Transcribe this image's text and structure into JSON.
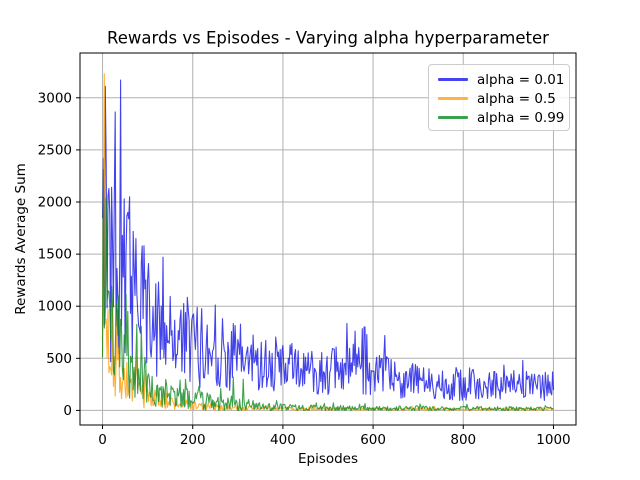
{
  "chart_data": {
    "type": "line",
    "title": "Rewards vs Episodes - Varying alpha hyperparameter",
    "xlabel": "Episodes",
    "ylabel": "Rewards Average Sum",
    "xlim": [
      -50,
      1050
    ],
    "ylim": [
      -140,
      3430
    ],
    "xticks": [
      0,
      200,
      400,
      600,
      800,
      1000
    ],
    "yticks": [
      0,
      500,
      1000,
      1500,
      2000,
      2500,
      3000
    ],
    "grid": true,
    "legend_position": "upper right",
    "x_range": {
      "start": 0,
      "end": 1000,
      "step": 2
    },
    "series": [
      {
        "name": "alpha = 0.01",
        "line_color": "#1414e6",
        "display_color": "#4545ef",
        "opacity": 0.8,
        "seed": 42,
        "spike_chance": 0.03,
        "envelope": [
          [
            0,
            1600,
            1200
          ],
          [
            30,
            1400,
            900
          ],
          [
            60,
            1150,
            750
          ],
          [
            100,
            900,
            550
          ],
          [
            150,
            730,
            460
          ],
          [
            200,
            640,
            430
          ],
          [
            250,
            560,
            370
          ],
          [
            300,
            510,
            340
          ],
          [
            350,
            460,
            290
          ],
          [
            400,
            430,
            260
          ],
          [
            450,
            390,
            230
          ],
          [
            500,
            370,
            220
          ],
          [
            550,
            390,
            260
          ],
          [
            600,
            340,
            210
          ],
          [
            650,
            310,
            190
          ],
          [
            700,
            280,
            175
          ],
          [
            750,
            265,
            165
          ],
          [
            800,
            255,
            160
          ],
          [
            850,
            245,
            155
          ],
          [
            900,
            240,
            150
          ],
          [
            950,
            232,
            148
          ],
          [
            1000,
            228,
            145
          ]
        ],
        "spikes": [
          [
            6,
            3110
          ],
          [
            14,
            2130
          ],
          [
            26,
            2040
          ],
          [
            40,
            3170
          ],
          [
            48,
            2030
          ],
          [
            56,
            1900
          ],
          [
            74,
            1650
          ],
          [
            92,
            1580
          ],
          [
            560,
            760
          ],
          [
            582,
            800
          ]
        ]
      },
      {
        "name": "alpha = 0.5",
        "line_color": "#ff9c00",
        "display_color": "#ffb340",
        "opacity": 0.8,
        "seed": 7,
        "spike_chance": 0.02,
        "envelope": [
          [
            0,
            1400,
            900
          ],
          [
            5,
            900,
            600
          ],
          [
            15,
            620,
            460
          ],
          [
            30,
            430,
            360
          ],
          [
            50,
            290,
            230
          ],
          [
            80,
            190,
            160
          ],
          [
            110,
            125,
            115
          ],
          [
            150,
            75,
            75
          ],
          [
            200,
            45,
            48
          ],
          [
            250,
            30,
            34
          ],
          [
            300,
            22,
            26
          ],
          [
            400,
            16,
            20
          ],
          [
            600,
            13,
            16
          ],
          [
            1000,
            11,
            14
          ]
        ],
        "spikes": [
          [
            4,
            3230
          ],
          [
            22,
            1020
          ],
          [
            32,
            950
          ]
        ]
      },
      {
        "name": "alpha = 0.99",
        "line_color": "#0e8a20",
        "display_color": "#3aa150",
        "opacity": 0.8,
        "seed": 23,
        "spike_chance": 0.025,
        "envelope": [
          [
            0,
            1200,
            850
          ],
          [
            10,
            820,
            560
          ],
          [
            25,
            660,
            460
          ],
          [
            50,
            490,
            360
          ],
          [
            80,
            330,
            260
          ],
          [
            110,
            240,
            200
          ],
          [
            150,
            150,
            135
          ],
          [
            200,
            100,
            100
          ],
          [
            250,
            80,
            85
          ],
          [
            300,
            72,
            82
          ],
          [
            330,
            48,
            52
          ],
          [
            380,
            30,
            34
          ],
          [
            450,
            24,
            28
          ],
          [
            600,
            20,
            24
          ],
          [
            1000,
            16,
            20
          ]
        ],
        "spikes": [
          [
            2,
            2310
          ],
          [
            12,
            1150
          ],
          [
            36,
            1100
          ],
          [
            55,
            950
          ],
          [
            290,
            320
          ],
          [
            312,
            300
          ]
        ]
      }
    ],
    "style": {
      "grid_color": "#b0b0b0",
      "spine_color": "#000000",
      "tick_color": "#000000",
      "text_color": "#000000",
      "background": "#ffffff",
      "legend_border": "#cccccc"
    }
  }
}
